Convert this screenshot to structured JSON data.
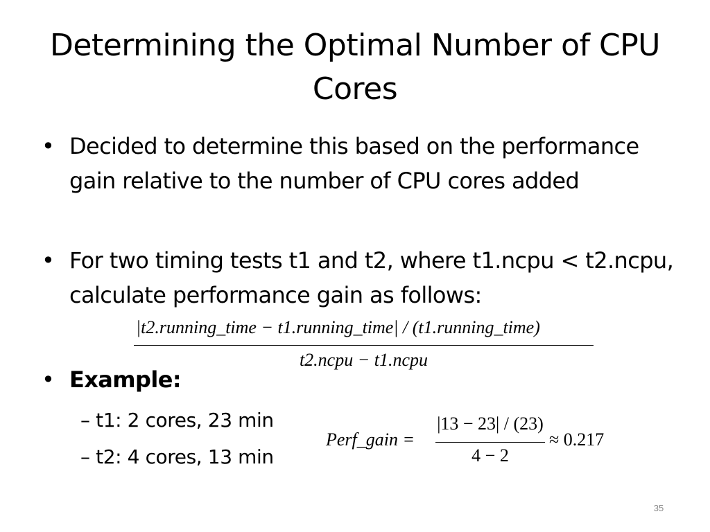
{
  "slide": {
    "title": "Determining the Optimal Number of CPU Cores",
    "bullet_glyph": "•",
    "dash_glyph": "–",
    "bullets": [
      "Decided to determine this based on the performance gain relative to the number of CPU cores added",
      "For two timing tests t1 and t2, where t1.ncpu < t2.ncpu, calculate performance gain as follows:",
      "Example:"
    ],
    "example_items": [
      "t1: 2 cores, 23 min",
      "t2: 4 cores, 13 min"
    ],
    "formula": {
      "numerator": "|t2.running_time − t1.running_time| / (t1.running_time)",
      "denominator": "t2.ncpu − t1.ncpu"
    },
    "example_formula": {
      "lhs": "Perf_gain =",
      "numerator": "|13 − 23| / (23)",
      "denominator": "4 − 2",
      "rhs": "≈ 0.217"
    },
    "page_number": "35"
  }
}
